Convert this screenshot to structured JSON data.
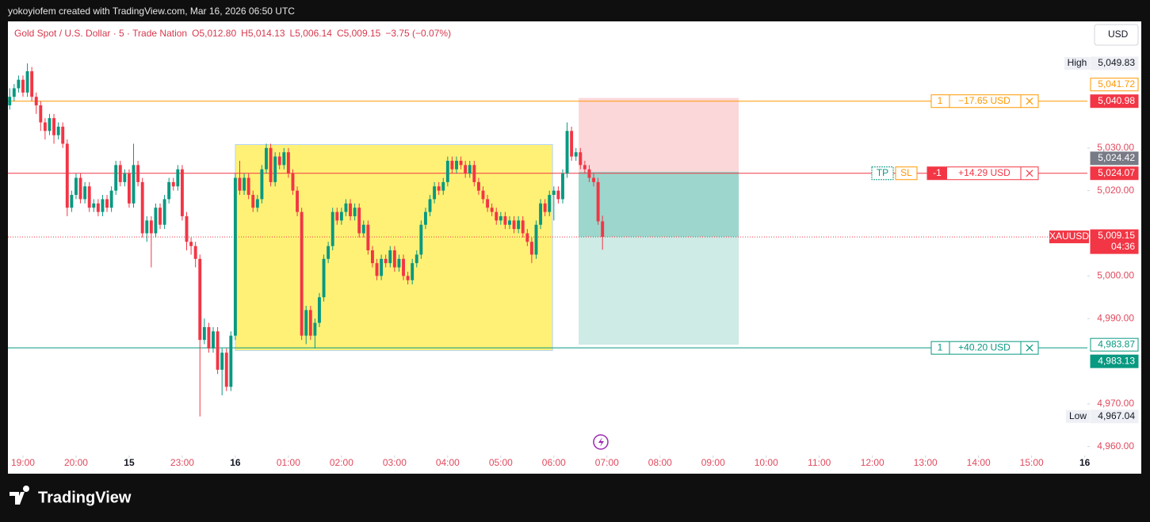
{
  "header": {
    "attribution": "yokoyiofem created with TradingView.com, Mar 16, 2026 06:50 UTC",
    "brand": "TradingView"
  },
  "chart_data": {
    "type": "candlestick",
    "title": "Gold Spot / U.S. Dollar · 5 · Trade Nation",
    "ohlc_legend": [
      {
        "label": "O",
        "value": "5,012.80"
      },
      {
        "label": "H",
        "value": "5,014.13"
      },
      {
        "label": "L",
        "value": "5,006.14"
      },
      {
        "label": "C",
        "value": "5,009.15"
      }
    ],
    "change": "−3.75 (−0.07%)",
    "currency": "USD",
    "up_color": "#089981",
    "down_color": "#f23645",
    "xlim": [
      -0.4,
      243.6
    ],
    "xticks": [
      {
        "value": 3,
        "label": "19:00"
      },
      {
        "value": 15,
        "label": "20:00"
      },
      {
        "value": 27,
        "label": "15"
      },
      {
        "value": 39,
        "label": "23:00"
      },
      {
        "value": 51,
        "label": "16"
      },
      {
        "value": 63,
        "label": "01:00"
      },
      {
        "value": 75,
        "label": "02:00"
      },
      {
        "value": 87,
        "label": "03:00"
      },
      {
        "value": 99,
        "label": "04:00"
      },
      {
        "value": 111,
        "label": "05:00"
      },
      {
        "value": 123,
        "label": "06:00"
      },
      {
        "value": 135,
        "label": "07:00"
      },
      {
        "value": 147,
        "label": "08:00"
      },
      {
        "value": 159,
        "label": "09:00"
      },
      {
        "value": 171,
        "label": "10:00"
      },
      {
        "value": 183,
        "label": "11:00"
      },
      {
        "value": 195,
        "label": "12:00"
      },
      {
        "value": 207,
        "label": "13:00"
      },
      {
        "value": 219,
        "label": "14:00"
      },
      {
        "value": 231,
        "label": "15:00"
      },
      {
        "value": 243,
        "label": "16"
      }
    ],
    "ylim": [
      4957.9,
      5059.5
    ],
    "yticks": [
      {
        "value": 5030,
        "label": "5,030.00"
      },
      {
        "value": 5020,
        "label": "5,020.00"
      },
      {
        "value": 5000,
        "label": "5,000.00"
      },
      {
        "value": 4990,
        "label": "4,990.00"
      },
      {
        "value": 4970,
        "label": "4,970.00"
      },
      {
        "value": 4960,
        "label": "4,960.00"
      }
    ],
    "high_label": "High",
    "high": {
      "value": 5049.83,
      "label": "5,049.83"
    },
    "low_label": "Low",
    "low": {
      "value": 4967.04,
      "label": "4,967.04"
    },
    "last_price": {
      "symbol": "XAUUSD",
      "price": {
        "value": 5009.15,
        "label": "5,009.15"
      },
      "countdown": "04:36"
    },
    "highlight_box": {
      "start": 51,
      "end": 122.7,
      "top": 5030.8,
      "bottom": 4982.5,
      "color": "#fff176"
    },
    "position_tool": {
      "start": 128.6,
      "end": 164.8,
      "stop": {
        "value": 5041.72,
        "label": "5,041.72"
      },
      "entry": {
        "value": 5024.42,
        "label": "5,024.42"
      },
      "target": {
        "value": 4983.87,
        "label": "4,983.87"
      }
    },
    "orders": [
      {
        "qty": "1",
        "pnl": "−17.65 USD",
        "price": {
          "value": 5040.98,
          "label": "5,040.98"
        },
        "line_color": "#ff9800",
        "label_color": "#f23645"
      },
      {
        "qty": "-1",
        "pnl": "+14.29 USD",
        "price": {
          "value": 5024.07,
          "label": "5,024.07"
        },
        "line_color": "#f23645",
        "label_color": "#f23645",
        "buttons": [
          "TP",
          "SL"
        ]
      },
      {
        "qty": "1",
        "pnl": "+40.20 USD",
        "price": {
          "value": 4983.13,
          "label": "4,983.13"
        },
        "line_color": "#089981",
        "label_color": "#089981"
      }
    ],
    "ohlc": [
      [
        5040,
        5044,
        5039,
        5042
      ],
      [
        5042,
        5045,
        5041,
        5044
      ],
      [
        5044,
        5047,
        5043,
        5046
      ],
      [
        5046,
        5047,
        5042,
        5043
      ],
      [
        5043,
        5049.83,
        5042,
        5048
      ],
      [
        5048,
        5049,
        5041,
        5042
      ],
      [
        5042,
        5043,
        5038,
        5040
      ],
      [
        5040,
        5041,
        5034,
        5036
      ],
      [
        5036,
        5037,
        5032,
        5034
      ],
      [
        5034,
        5038,
        5033,
        5037
      ],
      [
        5037,
        5038,
        5031,
        5033
      ],
      [
        5033,
        5036,
        5032,
        5035
      ],
      [
        5035,
        5036,
        5030,
        5031
      ],
      [
        5031,
        5032,
        5014,
        5016
      ],
      [
        5016,
        5020,
        5015,
        5019
      ],
      [
        5019,
        5024,
        5018,
        5023
      ],
      [
        5023,
        5024,
        5017,
        5018
      ],
      [
        5018,
        5022,
        5017,
        5021
      ],
      [
        5021,
        5022,
        5015,
        5016
      ],
      [
        5016,
        5018,
        5015,
        5017
      ],
      [
        5017,
        5018,
        5014,
        5015
      ],
      [
        5015,
        5019,
        5014,
        5018
      ],
      [
        5018,
        5019,
        5015,
        5016
      ],
      [
        5016,
        5021,
        5015,
        5020
      ],
      [
        5020,
        5027,
        5019,
        5026
      ],
      [
        5026,
        5027,
        5021,
        5022
      ],
      [
        5022,
        5025,
        5021,
        5024
      ],
      [
        5024,
        5025,
        5016,
        5017
      ],
      [
        5017,
        5031,
        5016,
        5026
      ],
      [
        5026,
        5027,
        5021,
        5022
      ],
      [
        5022,
        5023,
        5009,
        5010
      ],
      [
        5010,
        5014,
        5008,
        5013
      ],
      [
        5013,
        5014,
        5002,
        5010
      ],
      [
        5010,
        5017,
        5009,
        5016
      ],
      [
        5016,
        5017,
        5011,
        5012
      ],
      [
        5012,
        5019,
        5011,
        5018
      ],
      [
        5018,
        5023,
        5017,
        5022
      ],
      [
        5022,
        5023,
        5020,
        5021
      ],
      [
        5021,
        5026,
        5020,
        5025
      ],
      [
        5025,
        5026,
        5013,
        5014
      ],
      [
        5014,
        5015,
        5006,
        5008
      ],
      [
        5008,
        5009,
        5005,
        5007
      ],
      [
        5007,
        5008,
        5002,
        5004
      ],
      [
        5004,
        5005,
        4967.04,
        4985
      ],
      [
        4985,
        4990,
        4984,
        4988
      ],
      [
        4988,
        4989,
        4982,
        4983
      ],
      [
        4983,
        4988,
        4982,
        4987
      ],
      [
        4987,
        4988,
        4977,
        4978
      ],
      [
        4978,
        4983,
        4972,
        4982
      ],
      [
        4982,
        4983,
        4973,
        4974
      ],
      [
        4974,
        4987,
        4973,
        4986
      ],
      [
        4986,
        5024,
        4985,
        5023
      ],
      [
        5023,
        5027,
        5019,
        5020
      ],
      [
        5020,
        5024,
        5019,
        5023
      ],
      [
        5023,
        5024,
        5018,
        5019
      ],
      [
        5019,
        5020,
        5015,
        5016
      ],
      [
        5016,
        5019,
        5015,
        5018
      ],
      [
        5018,
        5026,
        5017,
        5025
      ],
      [
        5025,
        5031,
        5024,
        5030
      ],
      [
        5030,
        5031,
        5021,
        5022
      ],
      [
        5022,
        5029,
        5021,
        5028
      ],
      [
        5028,
        5029,
        5025,
        5026
      ],
      [
        5026,
        5030,
        5025,
        5029
      ],
      [
        5029,
        5030,
        5023,
        5024
      ],
      [
        5024,
        5025,
        5019,
        5020
      ],
      [
        5020,
        5021,
        5014,
        5015
      ],
      [
        5015,
        5016,
        4985,
        4986
      ],
      [
        4986,
        4993,
        4984,
        4992
      ],
      [
        4992,
        4993,
        4985,
        4986
      ],
      [
        4986,
        4990,
        4983,
        4989
      ],
      [
        4989,
        4996,
        4988,
        4995
      ],
      [
        4995,
        5005,
        4994,
        5004
      ],
      [
        5004,
        5008,
        5003,
        5007
      ],
      [
        5007,
        5016,
        5006,
        5015
      ],
      [
        5015,
        5016,
        5012,
        5013
      ],
      [
        5013,
        5016,
        5012,
        5015
      ],
      [
        5015,
        5018,
        5014,
        5017
      ],
      [
        5017,
        5018,
        5013,
        5014
      ],
      [
        5014,
        5017,
        5013,
        5016
      ],
      [
        5016,
        5017,
        5009,
        5010
      ],
      [
        5010,
        5013,
        5009,
        5012
      ],
      [
        5012,
        5013,
        5005,
        5006
      ],
      [
        5006,
        5007,
        5002,
        5003
      ],
      [
        5003,
        5004,
        4999,
        5000
      ],
      [
        5000,
        5005,
        4999,
        5004
      ],
      [
        5004,
        5005,
        5002,
        5003
      ],
      [
        5003,
        5007,
        5002,
        5006
      ],
      [
        5006,
        5007,
        5001,
        5002
      ],
      [
        5002,
        5005,
        5001,
        5004
      ],
      [
        5004,
        5005,
        4999,
        5000
      ],
      [
        5000,
        5001,
        4998,
        4999
      ],
      [
        4999,
        5004,
        4998,
        5003
      ],
      [
        5003,
        5006,
        5002,
        5005
      ],
      [
        5005,
        5013,
        5004,
        5012
      ],
      [
        5012,
        5016,
        5011,
        5015
      ],
      [
        5015,
        5019,
        5014,
        5018
      ],
      [
        5018,
        5022,
        5017,
        5021
      ],
      [
        5021,
        5022,
        5019,
        5020
      ],
      [
        5020,
        5023,
        5019,
        5022
      ],
      [
        5022,
        5028,
        5021,
        5027
      ],
      [
        5027,
        5028,
        5024,
        5025
      ],
      [
        5025,
        5028,
        5024,
        5027
      ],
      [
        5027,
        5028,
        5025,
        5026
      ],
      [
        5026,
        5027,
        5023,
        5024
      ],
      [
        5024,
        5027,
        5023,
        5026
      ],
      [
        5026,
        5027,
        5021,
        5022
      ],
      [
        5022,
        5023,
        5019,
        5020
      ],
      [
        5020,
        5021,
        5017,
        5018
      ],
      [
        5018,
        5019,
        5015,
        5016
      ],
      [
        5016,
        5017,
        5014,
        5015
      ],
      [
        5015,
        5016,
        5012,
        5013
      ],
      [
        5013,
        5015,
        5012,
        5014
      ],
      [
        5014,
        5015,
        5011,
        5012
      ],
      [
        5012,
        5014,
        5011,
        5013
      ],
      [
        5013,
        5014,
        5010,
        5011
      ],
      [
        5011,
        5014,
        5010,
        5013
      ],
      [
        5013,
        5014,
        5009,
        5010
      ],
      [
        5010,
        5011,
        5007,
        5008
      ],
      [
        5008,
        5009,
        5003,
        5005
      ],
      [
        5005,
        5013,
        5004,
        5012
      ],
      [
        5012,
        5018,
        5011,
        5017
      ],
      [
        5017,
        5018,
        5014,
        5015
      ],
      [
        5015,
        5020,
        5014,
        5019
      ],
      [
        5019,
        5021,
        5013,
        5020
      ],
      [
        5020,
        5021,
        5017,
        5018
      ],
      [
        5018,
        5025,
        5017,
        5024
      ],
      [
        5024,
        5036,
        5023,
        5034
      ],
      [
        5034,
        5035,
        5027,
        5028
      ],
      [
        5028,
        5030,
        5027,
        5029
      ],
      [
        5029,
        5030,
        5025,
        5026
      ],
      [
        5026,
        5027,
        5024,
        5025
      ],
      [
        5025,
        5026,
        5022,
        5023
      ],
      [
        5023,
        5024,
        5021,
        5022
      ],
      [
        5022,
        5023,
        5012,
        5012.8
      ],
      [
        5012.8,
        5014.13,
        5006.14,
        5009.15
      ]
    ]
  }
}
